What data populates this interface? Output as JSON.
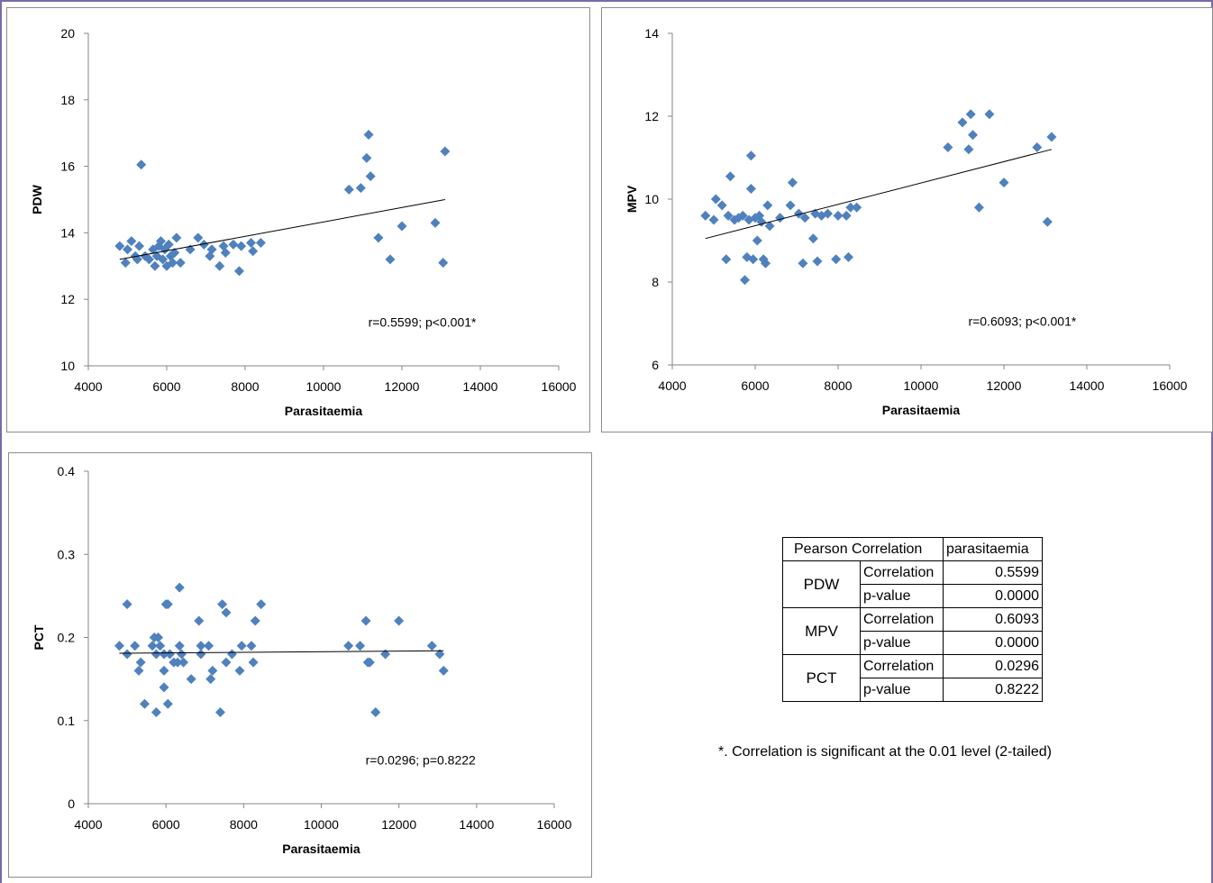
{
  "chart_data": [
    {
      "type": "scatter",
      "ylabel": "PDW",
      "xlabel": "Parasitaemia",
      "xlim": [
        4000,
        16000
      ],
      "ylim": [
        10,
        20
      ],
      "xticks": [
        "4000",
        "6000",
        "8000",
        "10000",
        "12000",
        "14000",
        "16000"
      ],
      "yticks": [
        "10",
        "12",
        "14",
        "16",
        "18",
        "20"
      ],
      "annotation": "r=0.5599; p<0.001*",
      "trendline": {
        "x": [
          4800,
          13100
        ],
        "y": [
          13.2,
          15.0
        ]
      },
      "points": [
        [
          4800,
          13.6
        ],
        [
          4950,
          13.1
        ],
        [
          5000,
          13.5
        ],
        [
          5100,
          13.75
        ],
        [
          5200,
          13.3
        ],
        [
          5250,
          13.2
        ],
        [
          5300,
          13.6
        ],
        [
          5350,
          16.05
        ],
        [
          5450,
          13.3
        ],
        [
          5550,
          13.2
        ],
        [
          5650,
          13.5
        ],
        [
          5700,
          13.0
        ],
        [
          5750,
          13.3
        ],
        [
          5800,
          13.6
        ],
        [
          5850,
          13.75
        ],
        [
          5900,
          13.2
        ],
        [
          5950,
          13.5
        ],
        [
          6000,
          13.0
        ],
        [
          6050,
          13.65
        ],
        [
          6100,
          13.3
        ],
        [
          6150,
          13.1
        ],
        [
          6200,
          13.4
        ],
        [
          6250,
          13.85
        ],
        [
          6350,
          13.1
        ],
        [
          6600,
          13.5
        ],
        [
          6800,
          13.85
        ],
        [
          6950,
          13.65
        ],
        [
          7100,
          13.3
        ],
        [
          7150,
          13.5
        ],
        [
          7350,
          13.0
        ],
        [
          7450,
          13.6
        ],
        [
          7500,
          13.4
        ],
        [
          7700,
          13.65
        ],
        [
          7850,
          12.85
        ],
        [
          7900,
          13.6
        ],
        [
          8150,
          13.7
        ],
        [
          8200,
          13.45
        ],
        [
          8400,
          13.7
        ],
        [
          10650,
          15.3
        ],
        [
          10950,
          15.35
        ],
        [
          11100,
          16.25
        ],
        [
          11150,
          16.95
        ],
        [
          11200,
          15.7
        ],
        [
          11400,
          13.85
        ],
        [
          11700,
          13.2
        ],
        [
          12000,
          14.2
        ],
        [
          12850,
          14.3
        ],
        [
          13050,
          13.1
        ],
        [
          13100,
          16.45
        ]
      ]
    },
    {
      "type": "scatter",
      "ylabel": "MPV",
      "xlabel": "Parasitaemia",
      "xlim": [
        4000,
        16000
      ],
      "ylim": [
        6,
        14
      ],
      "xticks": [
        "4000",
        "6000",
        "8000",
        "10000",
        "12000",
        "14000",
        "16000"
      ],
      "yticks": [
        "6",
        "8",
        "10",
        "12",
        "14"
      ],
      "annotation": "r=0.6093; p<0.001*",
      "trendline": {
        "x": [
          4800,
          13150
        ],
        "y": [
          9.05,
          11.2
        ]
      },
      "points": [
        [
          4800,
          9.6
        ],
        [
          5000,
          9.5
        ],
        [
          5050,
          10.0
        ],
        [
          5200,
          9.85
        ],
        [
          5300,
          8.55
        ],
        [
          5350,
          9.6
        ],
        [
          5400,
          10.55
        ],
        [
          5500,
          9.5
        ],
        [
          5600,
          9.55
        ],
        [
          5700,
          9.6
        ],
        [
          5750,
          8.05
        ],
        [
          5800,
          8.6
        ],
        [
          5850,
          9.5
        ],
        [
          5900,
          10.25
        ],
        [
          5900,
          11.05
        ],
        [
          5950,
          8.55
        ],
        [
          6000,
          9.55
        ],
        [
          6050,
          9.0
        ],
        [
          6100,
          9.6
        ],
        [
          6150,
          9.45
        ],
        [
          6200,
          8.55
        ],
        [
          6250,
          8.45
        ],
        [
          6300,
          9.85
        ],
        [
          6350,
          9.35
        ],
        [
          6600,
          9.55
        ],
        [
          6850,
          9.85
        ],
        [
          6900,
          10.4
        ],
        [
          7050,
          9.65
        ],
        [
          7150,
          8.45
        ],
        [
          7200,
          9.55
        ],
        [
          7400,
          9.05
        ],
        [
          7450,
          9.65
        ],
        [
          7500,
          8.5
        ],
        [
          7600,
          9.6
        ],
        [
          7750,
          9.65
        ],
        [
          7950,
          8.55
        ],
        [
          8000,
          9.6
        ],
        [
          8200,
          9.6
        ],
        [
          8250,
          8.6
        ],
        [
          8300,
          9.8
        ],
        [
          8450,
          9.8
        ],
        [
          10650,
          11.25
        ],
        [
          11000,
          11.85
        ],
        [
          11150,
          11.2
        ],
        [
          11200,
          12.05
        ],
        [
          11250,
          11.55
        ],
        [
          11400,
          9.8
        ],
        [
          11650,
          12.05
        ],
        [
          12000,
          10.4
        ],
        [
          12800,
          11.25
        ],
        [
          13050,
          9.45
        ],
        [
          13150,
          11.5
        ]
      ]
    },
    {
      "type": "scatter",
      "ylabel": "PCT",
      "xlabel": "Parasitaemia",
      "xlim": [
        4000,
        16000
      ],
      "ylim": [
        0,
        0.4
      ],
      "xticks": [
        "4000",
        "6000",
        "8000",
        "10000",
        "12000",
        "14000",
        "16000"
      ],
      "yticks": [
        "0",
        "0.1",
        "0.2",
        "0.3",
        "0.4"
      ],
      "annotation": "r=0.0296; p=0.8222",
      "trendline": {
        "x": [
          4800,
          13150
        ],
        "y": [
          0.181,
          0.184
        ]
      },
      "points": [
        [
          4800,
          0.19
        ],
        [
          5000,
          0.18
        ],
        [
          5000,
          0.24
        ],
        [
          5200,
          0.19
        ],
        [
          5300,
          0.16
        ],
        [
          5350,
          0.17
        ],
        [
          5450,
          0.12
        ],
        [
          5650,
          0.19
        ],
        [
          5700,
          0.2
        ],
        [
          5750,
          0.18
        ],
        [
          5750,
          0.11
        ],
        [
          5800,
          0.2
        ],
        [
          5850,
          0.19
        ],
        [
          5950,
          0.16
        ],
        [
          5950,
          0.18
        ],
        [
          5950,
          0.14
        ],
        [
          6000,
          0.24
        ],
        [
          6050,
          0.24
        ],
        [
          6050,
          0.12
        ],
        [
          6100,
          0.18
        ],
        [
          6200,
          0.17
        ],
        [
          6300,
          0.17
        ],
        [
          6350,
          0.26
        ],
        [
          6350,
          0.19
        ],
        [
          6400,
          0.18
        ],
        [
          6450,
          0.17
        ],
        [
          6650,
          0.15
        ],
        [
          6850,
          0.22
        ],
        [
          6900,
          0.18
        ],
        [
          6900,
          0.19
        ],
        [
          7100,
          0.19
        ],
        [
          7150,
          0.15
        ],
        [
          7200,
          0.16
        ],
        [
          7400,
          0.11
        ],
        [
          7450,
          0.24
        ],
        [
          7550,
          0.17
        ],
        [
          7550,
          0.23
        ],
        [
          7700,
          0.18
        ],
        [
          7900,
          0.16
        ],
        [
          7950,
          0.19
        ],
        [
          8200,
          0.19
        ],
        [
          8250,
          0.17
        ],
        [
          8300,
          0.22
        ],
        [
          8450,
          0.24
        ],
        [
          10700,
          0.19
        ],
        [
          11000,
          0.19
        ],
        [
          11150,
          0.22
        ],
        [
          11200,
          0.17
        ],
        [
          11250,
          0.17
        ],
        [
          11400,
          0.11
        ],
        [
          11650,
          0.18
        ],
        [
          12000,
          0.22
        ],
        [
          12850,
          0.19
        ],
        [
          13050,
          0.18
        ],
        [
          13150,
          0.16
        ]
      ]
    }
  ],
  "table": {
    "header": [
      "Pearson Correlation",
      "parasitaemia"
    ],
    "groups": [
      {
        "name": "PDW",
        "rows": [
          {
            "stat": "Correlation",
            "value": "0.5599"
          },
          {
            "stat": "p-value",
            "value": "0.0000"
          }
        ]
      },
      {
        "name": "MPV",
        "rows": [
          {
            "stat": "Correlation",
            "value": "0.6093"
          },
          {
            "stat": "p-value",
            "value": "0.0000"
          }
        ]
      },
      {
        "name": "PCT",
        "rows": [
          {
            "stat": "Correlation",
            "value": "0.0296"
          },
          {
            "stat": "p-value",
            "value": "0.8222"
          }
        ]
      }
    ]
  },
  "footnote": "*. Correlation is significant at the 0.01 level (2-tailed)",
  "colors": {
    "marker": "#4f81bd",
    "trendline": "#000000",
    "axis": "#868686",
    "frame": "#7a6aa8"
  }
}
